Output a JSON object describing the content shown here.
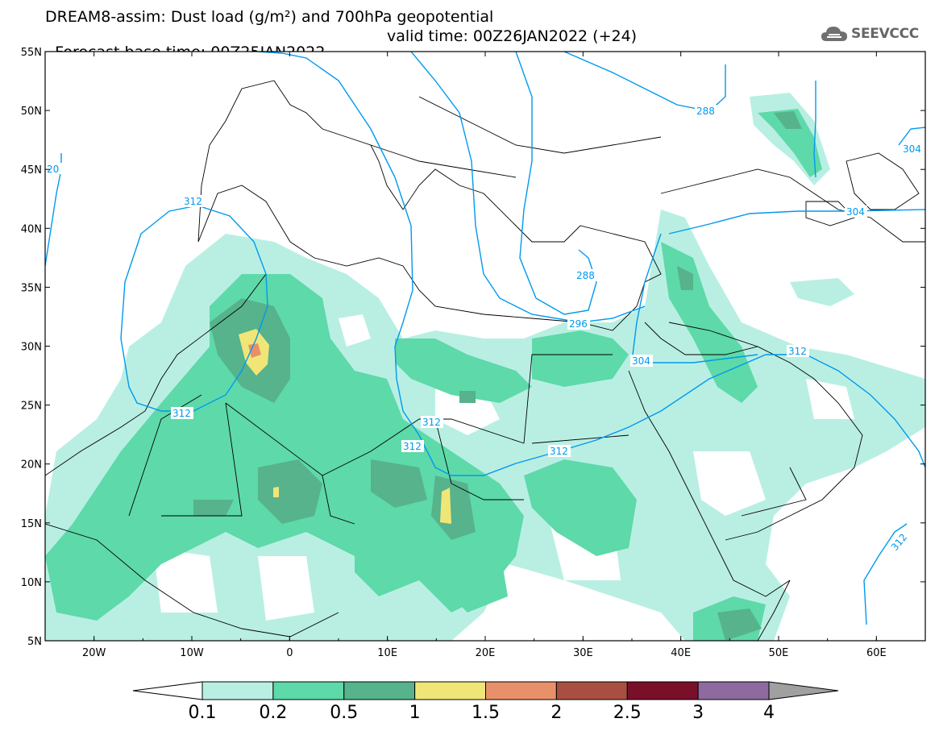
{
  "header": {
    "title_line1": "DREAM8-assim: Dust load (g/m²) and 700hPa geopotential",
    "base_time": "Forecast base time: 00Z25JAN2022",
    "valid_time": "valid time: 00Z26JAN2022 (+24)",
    "logo_text": "SEEVCCC",
    "logo_icon": "cloud-icon"
  },
  "map": {
    "lon_range": [
      -25,
      65
    ],
    "lat_range": [
      5,
      55
    ],
    "lat_labels": [
      "55N",
      "50N",
      "45N",
      "40N",
      "35N",
      "30N",
      "25N",
      "20N",
      "15N",
      "10N",
      "5N"
    ],
    "lon_labels": [
      "20W",
      "10W",
      "0",
      "10E",
      "20E",
      "30E",
      "40E",
      "50E",
      "60E"
    ],
    "contour_labels": [
      "20",
      "312",
      "288",
      "304",
      "304",
      "288",
      "296",
      "304",
      "312",
      "312",
      "312",
      "312",
      "312",
      "312"
    ]
  },
  "colorbar": {
    "levels": [
      "0.1",
      "0.2",
      "0.5",
      "1",
      "1.5",
      "2",
      "2.5",
      "3",
      "4"
    ],
    "colors": [
      "#ffffff",
      "#b9efe3",
      "#5ed9a9",
      "#56b38b",
      "#f0e678",
      "#e8906a",
      "#a84f42",
      "#7a0f2a",
      "#8e6aa0",
      "#a0a0a0"
    ]
  }
}
